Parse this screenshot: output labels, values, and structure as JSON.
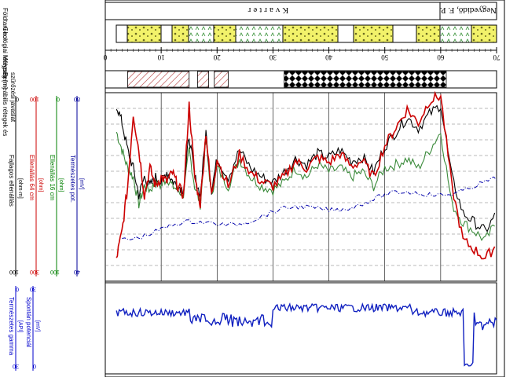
{
  "labels": {
    "geo_age": "Földtani kor",
    "geology": "Geológiai rétegsor",
    "depth": "Mélység [m]",
    "perm_sep_1": "Permeábilis rétegek és",
    "perm_sep_2": "szűrőzési javaslat",
    "age_quaternary": "Kvarter",
    "age_pliocene": "Negyedidő, F. P.",
    "depth_ticks": [
      "0",
      "10",
      "20",
      "30",
      "40",
      "50",
      "60",
      "70"
    ]
  },
  "tracks": [
    {
      "name": "Természetes gamma",
      "unit": "[API]",
      "min": "30",
      "max": "0",
      "color": "#0000cc"
    },
    {
      "name": "Spontán potenciál",
      "unit": "[mV]",
      "min": "0",
      "max": "30",
      "color": "#0000cc"
    },
    {
      "name": "Fajlagos ellenállás",
      "unit": "[ohm·m]",
      "min": "100",
      "max": "0",
      "color": "#000000"
    },
    {
      "name": "Ellenállás 64 cm",
      "unit": "[ohm]",
      "min": "300",
      "max": "100",
      "color": "#cc0000"
    },
    {
      "name": "Ellenállás 16 cm",
      "unit": "[ohm]",
      "min": "100",
      "max": "0",
      "color": "#008000"
    },
    {
      "name": "Természetes pot.",
      "unit": "[mV]",
      "min": "40",
      "max": "80",
      "color": "#000099"
    }
  ],
  "permeable_zones": [
    {
      "from": 4,
      "to": 15,
      "style": "hatch"
    },
    {
      "from": 16.5,
      "to": 18.5,
      "style": "hatch"
    },
    {
      "from": 19.5,
      "to": 22,
      "style": "hatch"
    },
    {
      "from": 32,
      "to": 61,
      "style": "checker"
    }
  ],
  "chart_data": {
    "type": "line",
    "x_label": "Mélység [m]",
    "x_range": [
      0,
      70
    ],
    "x": [
      2,
      3,
      4,
      5,
      6,
      7,
      8,
      9,
      10,
      11,
      12,
      13,
      14,
      15,
      16,
      17,
      18,
      19,
      20,
      22,
      24,
      26,
      28,
      30,
      32,
      34,
      36,
      38,
      40,
      42,
      44,
      46,
      48,
      50,
      52,
      54,
      56,
      58,
      60,
      62,
      64,
      66,
      68,
      70
    ],
    "series": [
      {
        "name": "Ellenállás 16 cm",
        "color": "#3a8a3a",
        "values": [
          80,
          70,
          60,
          55,
          40,
          50,
          48,
          52,
          50,
          55,
          50,
          48,
          45,
          70,
          50,
          40,
          75,
          45,
          60,
          50,
          65,
          55,
          50,
          48,
          52,
          60,
          55,
          62,
          58,
          60,
          55,
          58,
          50,
          60,
          62,
          65,
          60,
          70,
          80,
          40,
          30,
          25,
          20,
          30
        ]
      },
      {
        "name": "Fajlagos ellenállás",
        "color": "#000000",
        "values": [
          95,
          85,
          70,
          60,
          45,
          55,
          50,
          55,
          52,
          58,
          53,
          50,
          48,
          78,
          55,
          45,
          80,
          48,
          65,
          55,
          70,
          60,
          55,
          52,
          58,
          65,
          62,
          68,
          66,
          70,
          64,
          66,
          58,
          72,
          80,
          88,
          82,
          90,
          95,
          55,
          35,
          30,
          25,
          35
        ]
      },
      {
        "name": "Ellenállás 64 cm",
        "color": "#cc0000",
        "values": [
          120,
          150,
          200,
          280,
          240,
          190,
          220,
          200,
          210,
          205,
          215,
          200,
          190,
          290,
          210,
          180,
          260,
          190,
          230,
          200,
          235,
          215,
          205,
          200,
          210,
          228,
          220,
          232,
          226,
          236,
          222,
          228,
          210,
          245,
          265,
          285,
          270,
          295,
          300,
          200,
          140,
          130,
          120,
          135
        ]
      }
    ]
  }
}
